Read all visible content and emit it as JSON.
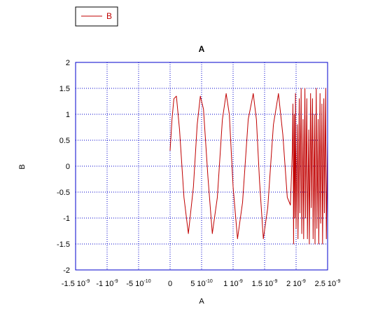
{
  "chart_data": {
    "type": "line",
    "title": "A",
    "xlabel": "A",
    "ylabel": "B",
    "legend": {
      "placement": "top-left",
      "entries": [
        "B"
      ]
    },
    "grid": true,
    "colors": {
      "series": "#c00000",
      "grid": "#0000cc",
      "frame": "#0000cc"
    },
    "xlim": [
      -1.5e-09,
      2.5e-09
    ],
    "ylim": [
      -2,
      2
    ],
    "x_ticks": [
      {
        "mant": "-1.5",
        "exp": "-9"
      },
      {
        "mant": "-1",
        "exp": "-9"
      },
      {
        "mant": "-5",
        "exp": "-10"
      },
      {
        "mant": "0",
        "exp": ""
      },
      {
        "mant": "5",
        "exp": "-10"
      },
      {
        "mant": "1",
        "exp": "-9"
      },
      {
        "mant": "1.5",
        "exp": "-9"
      },
      {
        "mant": "2",
        "exp": "-9"
      },
      {
        "mant": "2.5",
        "exp": "-9"
      }
    ],
    "y_ticks": [
      "2",
      "1.5",
      "1",
      "0.5",
      "0",
      "-0.5",
      "-1",
      "-1.5",
      "-2"
    ],
    "series": [
      {
        "name": "B",
        "x": [
          0,
          3e-11,
          6e-11,
          1e-10,
          1.5e-10,
          2.2e-10,
          2.9e-10,
          3.7e-10,
          4.3e-10,
          4.8e-10,
          5.3e-10,
          6e-10,
          6.7e-10,
          7.5e-10,
          8.3e-10,
          8.9e-10,
          9.4e-10,
          1e-09,
          1.07e-09,
          1.15e-09,
          1.24e-09,
          1.32e-09,
          1.37e-09,
          1.42e-09,
          1.48e-09,
          1.55e-09,
          1.64e-09,
          1.72e-09,
          1.79e-09,
          1.86e-09,
          1.91e-09,
          1.94e-09,
          1.95e-09,
          1.96e-09,
          1.97e-09,
          1.98e-09,
          1.99e-09,
          2e-09,
          2.02e-09,
          2.03e-09,
          2.05e-09,
          2.06e-09,
          2.08e-09,
          2.09e-09,
          2.11e-09,
          2.12e-09,
          2.14e-09,
          2.15e-09,
          2.17e-09,
          2.18e-09,
          2.2e-09,
          2.21e-09,
          2.23e-09,
          2.24e-09,
          2.26e-09,
          2.27e-09,
          2.29e-09,
          2.3e-09,
          2.32e-09,
          2.33e-09,
          2.35e-09,
          2.36e-09,
          2.38e-09,
          2.39e-09,
          2.41e-09,
          2.42e-09,
          2.44e-09,
          2.45e-09,
          2.47e-09,
          2.48e-09,
          2.5e-09
        ],
        "y": [
          0.3,
          0.9,
          1.3,
          1.35,
          0.7,
          -0.6,
          -1.3,
          -0.4,
          0.8,
          1.35,
          1.1,
          -0.2,
          -1.3,
          -0.6,
          0.9,
          1.4,
          1.0,
          -0.4,
          -1.4,
          -0.7,
          0.9,
          1.4,
          0.9,
          -0.3,
          -1.4,
          -0.8,
          0.8,
          1.4,
          0.6,
          -0.6,
          -0.75,
          0.3,
          1.2,
          -1.5,
          1.0,
          -1.0,
          1.4,
          -1.2,
          0.8,
          -1.4,
          1.3,
          -0.9,
          1.5,
          -1.3,
          0.9,
          -1.4,
          1.5,
          -1.0,
          1.3,
          -1.4,
          0.7,
          -1.5,
          1.4,
          -0.8,
          1.3,
          -1.4,
          1.0,
          -1.5,
          1.5,
          -1.2,
          0.9,
          -1.5,
          1.4,
          -1.1,
          1.2,
          -1.5,
          1.3,
          -0.9,
          1.5,
          -1.4,
          0.5
        ]
      }
    ]
  }
}
